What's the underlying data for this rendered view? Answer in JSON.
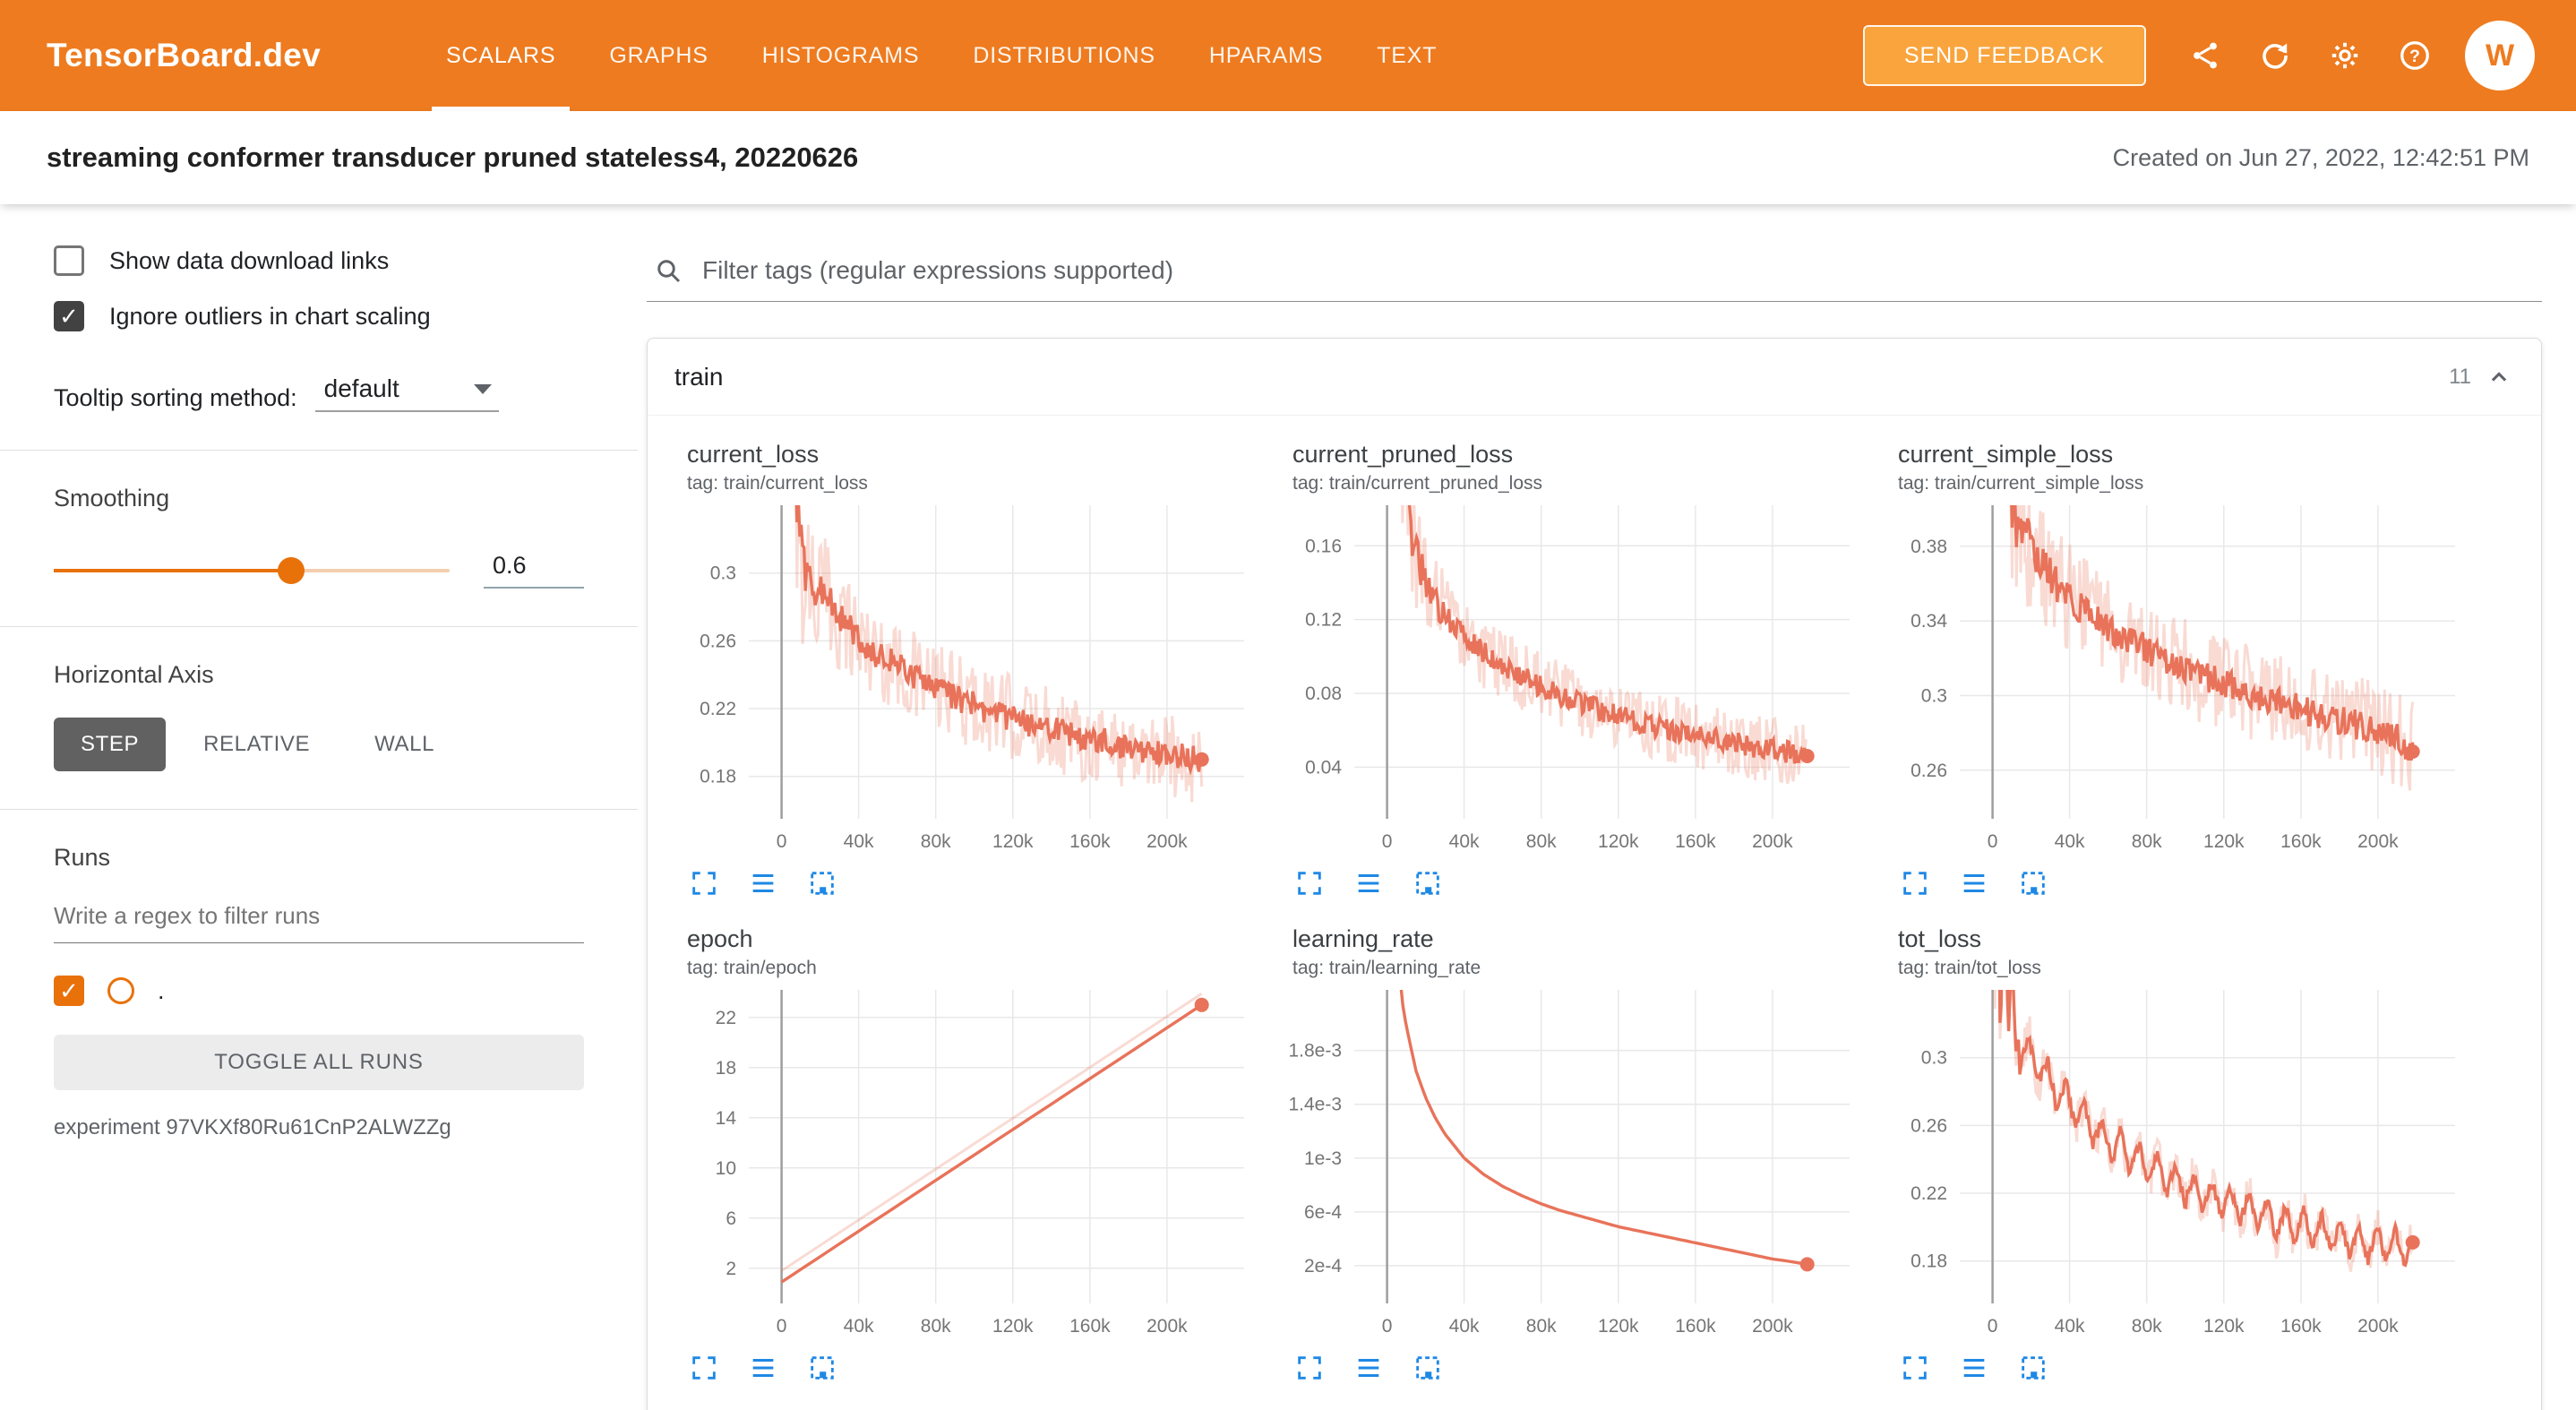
{
  "header": {
    "logo": "TensorBoard.dev",
    "nav": [
      {
        "label": "SCALARS",
        "active": true
      },
      {
        "label": "GRAPHS",
        "active": false
      },
      {
        "label": "HISTOGRAMS",
        "active": false
      },
      {
        "label": "DISTRIBUTIONS",
        "active": false
      },
      {
        "label": "HPARAMS",
        "active": false
      },
      {
        "label": "TEXT",
        "active": false
      }
    ],
    "feedback_label": "SEND FEEDBACK",
    "avatar_initial": "W"
  },
  "titlebar": {
    "title": "streaming conformer transducer pruned stateless4, 20220626",
    "created": "Created on Jun 27, 2022, 12:42:51 PM"
  },
  "sidebar": {
    "show_download": {
      "label": "Show data download links",
      "checked": false
    },
    "ignore_outliers": {
      "label": "Ignore outliers in chart scaling",
      "checked": true
    },
    "tooltip_sort": {
      "label": "Tooltip sorting method:",
      "value": "default"
    },
    "smoothing": {
      "label": "Smoothing",
      "value": "0.6"
    },
    "horizontal_axis": {
      "label": "Horizontal Axis",
      "options": [
        "STEP",
        "RELATIVE",
        "WALL"
      ],
      "selected": "STEP"
    },
    "runs": {
      "label": "Runs",
      "filter_placeholder": "Write a regex to filter runs",
      "run_name": ".",
      "toggle_all": "TOGGLE ALL RUNS",
      "experiment": "experiment 97VKXf80Ru61CnP2ALWZZg"
    }
  },
  "main": {
    "filter_placeholder": "Filter tags (regular expressions supported)",
    "section": {
      "name": "train",
      "count": "11"
    }
  },
  "colors": {
    "header_bg": "#ee7b1f",
    "feedback_bg": "#f9a43d",
    "accent": "#e8710a",
    "run_line": "#e8735a",
    "run_line_light": "rgba(232,115,90,0.26)",
    "icon_blue": "#1e88e5"
  },
  "chart_data": [
    {
      "type": "line",
      "title": "current_loss",
      "tag": "tag: train/current_loss",
      "x_range": [
        -17000,
        240000
      ],
      "y_range": [
        0.155,
        0.34
      ],
      "x_ticks": [
        {
          "v": 0,
          "label": "0"
        },
        {
          "v": 40000,
          "label": "40k"
        },
        {
          "v": 80000,
          "label": "80k"
        },
        {
          "v": 120000,
          "label": "120k"
        },
        {
          "v": 160000,
          "label": "160k"
        },
        {
          "v": 200000,
          "label": "200k"
        }
      ],
      "y_ticks": [
        {
          "v": 0.18,
          "label": "0.18"
        },
        {
          "v": 0.22,
          "label": "0.22"
        },
        {
          "v": 0.26,
          "label": "0.26"
        },
        {
          "v": 0.3,
          "label": "0.3"
        }
      ],
      "series": [
        {
          "name": ".",
          "base": [
            [
              0,
              0.33
            ],
            [
              1500,
              0.52
            ],
            [
              3500,
              0.4
            ],
            [
              5500,
              0.46
            ],
            [
              8000,
              0.33
            ],
            [
              12000,
              0.3
            ],
            [
              20000,
              0.288
            ],
            [
              30000,
              0.275
            ],
            [
              40000,
              0.262
            ],
            [
              50000,
              0.252
            ],
            [
              60000,
              0.245
            ],
            [
              70000,
              0.238
            ],
            [
              80000,
              0.232
            ],
            [
              90000,
              0.227
            ],
            [
              100000,
              0.222
            ],
            [
              110000,
              0.218
            ],
            [
              120000,
              0.214
            ],
            [
              130000,
              0.211
            ],
            [
              140000,
              0.208
            ],
            [
              150000,
              0.205
            ],
            [
              160000,
              0.202
            ],
            [
              170000,
              0.2
            ],
            [
              180000,
              0.197
            ],
            [
              190000,
              0.195
            ],
            [
              200000,
              0.193
            ],
            [
              210000,
              0.191
            ],
            [
              218000,
              0.19
            ]
          ]
        }
      ],
      "noise": {
        "raw": 0.026,
        "smooth": 0.008,
        "start_mult": 2.4,
        "decay": 14000
      },
      "samples": 300,
      "light_shift": 0,
      "end_dot": [
        218000,
        0.19
      ]
    },
    {
      "type": "line",
      "title": "current_pruned_loss",
      "tag": "tag: train/current_pruned_loss",
      "x_range": [
        -17000,
        240000
      ],
      "y_range": [
        0.012,
        0.182
      ],
      "x_ticks": [
        {
          "v": 0,
          "label": "0"
        },
        {
          "v": 40000,
          "label": "40k"
        },
        {
          "v": 80000,
          "label": "80k"
        },
        {
          "v": 120000,
          "label": "120k"
        },
        {
          "v": 160000,
          "label": "160k"
        },
        {
          "v": 200000,
          "label": "200k"
        }
      ],
      "y_ticks": [
        {
          "v": 0.04,
          "label": "0.04"
        },
        {
          "v": 0.08,
          "label": "0.08"
        },
        {
          "v": 0.12,
          "label": "0.12"
        },
        {
          "v": 0.16,
          "label": "0.16"
        }
      ],
      "series": [
        {
          "name": ".",
          "base": [
            [
              0,
              0.32
            ],
            [
              1500,
              0.45
            ],
            [
              3500,
              0.3
            ],
            [
              5500,
              0.34
            ],
            [
              8000,
              0.21
            ],
            [
              12000,
              0.168
            ],
            [
              20000,
              0.14
            ],
            [
              30000,
              0.122
            ],
            [
              40000,
              0.111
            ],
            [
              50000,
              0.102
            ],
            [
              60000,
              0.095
            ],
            [
              70000,
              0.089
            ],
            [
              80000,
              0.084
            ],
            [
              90000,
              0.079
            ],
            [
              100000,
              0.075
            ],
            [
              110000,
              0.071
            ],
            [
              120000,
              0.068
            ],
            [
              130000,
              0.065
            ],
            [
              140000,
              0.062
            ],
            [
              150000,
              0.06
            ],
            [
              160000,
              0.057
            ],
            [
              170000,
              0.055
            ],
            [
              180000,
              0.053
            ],
            [
              190000,
              0.051
            ],
            [
              200000,
              0.049
            ],
            [
              210000,
              0.048
            ],
            [
              218000,
              0.046
            ]
          ]
        }
      ],
      "noise": {
        "raw": 0.018,
        "smooth": 0.006,
        "start_mult": 2.4,
        "decay": 14000
      },
      "samples": 300,
      "light_shift": 0,
      "end_dot": [
        218000,
        0.046
      ]
    },
    {
      "type": "line",
      "title": "current_simple_loss",
      "tag": "tag: train/current_simple_loss",
      "x_range": [
        -17000,
        240000
      ],
      "y_range": [
        0.234,
        0.402
      ],
      "x_ticks": [
        {
          "v": 0,
          "label": "0"
        },
        {
          "v": 40000,
          "label": "40k"
        },
        {
          "v": 80000,
          "label": "80k"
        },
        {
          "v": 120000,
          "label": "120k"
        },
        {
          "v": 160000,
          "label": "160k"
        },
        {
          "v": 200000,
          "label": "200k"
        }
      ],
      "y_ticks": [
        {
          "v": 0.26,
          "label": "0.26"
        },
        {
          "v": 0.3,
          "label": "0.3"
        },
        {
          "v": 0.34,
          "label": "0.34"
        },
        {
          "v": 0.38,
          "label": "0.38"
        }
      ],
      "series": [
        {
          "name": ".",
          "base": [
            [
              0,
              0.45
            ],
            [
              1500,
              0.62
            ],
            [
              3500,
              0.5
            ],
            [
              5500,
              0.56
            ],
            [
              8000,
              0.42
            ],
            [
              12000,
              0.395
            ],
            [
              20000,
              0.378
            ],
            [
              30000,
              0.364
            ],
            [
              40000,
              0.352
            ],
            [
              50000,
              0.344
            ],
            [
              60000,
              0.337
            ],
            [
              70000,
              0.33
            ],
            [
              80000,
              0.325
            ],
            [
              90000,
              0.319
            ],
            [
              100000,
              0.315
            ],
            [
              110000,
              0.31
            ],
            [
              120000,
              0.306
            ],
            [
              130000,
              0.303
            ],
            [
              140000,
              0.299
            ],
            [
              150000,
              0.296
            ],
            [
              160000,
              0.293
            ],
            [
              170000,
              0.29
            ],
            [
              180000,
              0.287
            ],
            [
              190000,
              0.284
            ],
            [
              200000,
              0.281
            ],
            [
              210000,
              0.277
            ],
            [
              218000,
              0.271
            ]
          ]
        }
      ],
      "noise": {
        "raw": 0.026,
        "smooth": 0.008,
        "start_mult": 2.4,
        "decay": 14000
      },
      "samples": 300,
      "light_shift": 0,
      "end_dot": [
        218000,
        0.27
      ]
    },
    {
      "type": "line",
      "title": "epoch",
      "tag": "tag: train/epoch",
      "x_range": [
        -17000,
        240000
      ],
      "y_range": [
        -0.8,
        24.2
      ],
      "x_ticks": [
        {
          "v": 0,
          "label": "0"
        },
        {
          "v": 40000,
          "label": "40k"
        },
        {
          "v": 80000,
          "label": "80k"
        },
        {
          "v": 120000,
          "label": "120k"
        },
        {
          "v": 160000,
          "label": "160k"
        },
        {
          "v": 200000,
          "label": "200k"
        }
      ],
      "y_ticks": [
        {
          "v": 2,
          "label": "2"
        },
        {
          "v": 6,
          "label": "6"
        },
        {
          "v": 10,
          "label": "10"
        },
        {
          "v": 14,
          "label": "14"
        },
        {
          "v": 18,
          "label": "18"
        },
        {
          "v": 22,
          "label": "22"
        }
      ],
      "series": [
        {
          "name": ".",
          "base": [
            [
              0,
              0.9
            ],
            [
              218000,
              23.0
            ]
          ]
        }
      ],
      "samples": 40,
      "light_shift": 0.9,
      "end_dot": [
        218000,
        23.0
      ]
    },
    {
      "type": "line",
      "title": "learning_rate",
      "tag": "tag: train/learning_rate",
      "x_range": [
        -17000,
        240000
      ],
      "y_range": [
        -8e-05,
        0.00225
      ],
      "x_ticks": [
        {
          "v": 0,
          "label": "0"
        },
        {
          "v": 40000,
          "label": "40k"
        },
        {
          "v": 80000,
          "label": "80k"
        },
        {
          "v": 120000,
          "label": "120k"
        },
        {
          "v": 160000,
          "label": "160k"
        },
        {
          "v": 200000,
          "label": "200k"
        }
      ],
      "y_ticks": [
        {
          "v": 0.0002,
          "label": "2e-4"
        },
        {
          "v": 0.0006,
          "label": "6e-4"
        },
        {
          "v": 0.001,
          "label": "1e-3"
        },
        {
          "v": 0.0014,
          "label": "1.4e-3"
        },
        {
          "v": 0.0018,
          "label": "1.8e-3"
        }
      ],
      "series": [
        {
          "name": ".",
          "base": [
            [
              0,
              0.006
            ],
            [
              3000,
              0.0035
            ],
            [
              5000,
              0.0026
            ],
            [
              8000,
              0.00215
            ],
            [
              10000,
              0.00198
            ],
            [
              15000,
              0.00165
            ],
            [
              20000,
              0.00145
            ],
            [
              25000,
              0.0013
            ],
            [
              30000,
              0.00118
            ],
            [
              40000,
              0.001
            ],
            [
              50000,
              0.00088
            ],
            [
              60000,
              0.00079
            ],
            [
              70000,
              0.00072
            ],
            [
              80000,
              0.00066
            ],
            [
              90000,
              0.00061
            ],
            [
              100000,
              0.00057
            ],
            [
              110000,
              0.00053
            ],
            [
              120000,
              0.00049
            ],
            [
              130000,
              0.00046
            ],
            [
              140000,
              0.00043
            ],
            [
              150000,
              0.0004
            ],
            [
              160000,
              0.00037
            ],
            [
              170000,
              0.00034
            ],
            [
              180000,
              0.00031
            ],
            [
              190000,
              0.00028
            ],
            [
              200000,
              0.00025
            ],
            [
              210000,
              0.00023
            ],
            [
              218000,
              0.00021
            ]
          ]
        }
      ],
      "samples": 160,
      "light_shift": 0,
      "end_dot": [
        218000,
        0.00021
      ]
    },
    {
      "type": "line",
      "title": "tot_loss",
      "tag": "tag: train/tot_loss",
      "x_range": [
        -17000,
        240000
      ],
      "y_range": [
        0.155,
        0.34
      ],
      "x_ticks": [
        {
          "v": 0,
          "label": "0"
        },
        {
          "v": 40000,
          "label": "40k"
        },
        {
          "v": 80000,
          "label": "80k"
        },
        {
          "v": 120000,
          "label": "120k"
        },
        {
          "v": 160000,
          "label": "160k"
        },
        {
          "v": 200000,
          "label": "200k"
        }
      ],
      "y_ticks": [
        {
          "v": 0.18,
          "label": "0.18"
        },
        {
          "v": 0.22,
          "label": "0.22"
        },
        {
          "v": 0.26,
          "label": "0.26"
        },
        {
          "v": 0.3,
          "label": "0.3"
        }
      ],
      "series": [
        {
          "name": ".",
          "base": [
            [
              0,
              0.46
            ],
            [
              1200,
              0.33
            ],
            [
              2500,
              0.52
            ],
            [
              4000,
              0.3
            ],
            [
              6000,
              0.44
            ],
            [
              8000,
              0.31
            ],
            [
              10000,
              0.37
            ],
            [
              12000,
              0.305
            ],
            [
              16000,
              0.306
            ],
            [
              20000,
              0.3
            ],
            [
              30000,
              0.286
            ],
            [
              40000,
              0.273
            ],
            [
              50000,
              0.261
            ],
            [
              60000,
              0.251
            ],
            [
              70000,
              0.243
            ],
            [
              80000,
              0.236
            ],
            [
              90000,
              0.23
            ],
            [
              100000,
              0.224
            ],
            [
              110000,
              0.219
            ],
            [
              120000,
              0.215
            ],
            [
              130000,
              0.211
            ],
            [
              140000,
              0.207
            ],
            [
              150000,
              0.203
            ],
            [
              160000,
              0.2
            ],
            [
              170000,
              0.197
            ],
            [
              180000,
              0.194
            ],
            [
              190000,
              0.192
            ],
            [
              200000,
              0.19
            ],
            [
              210000,
              0.188
            ],
            [
              218000,
              0.187
            ]
          ]
        }
      ],
      "noise": {
        "raw": 0.012,
        "smooth": 0.004,
        "start_mult": 2.0,
        "decay": 8000
      },
      "osc": {
        "period": 9500,
        "amp": 0.011,
        "start": 14000
      },
      "samples": 340,
      "light_shift": 0,
      "end_dot": [
        218000,
        0.191
      ]
    }
  ]
}
